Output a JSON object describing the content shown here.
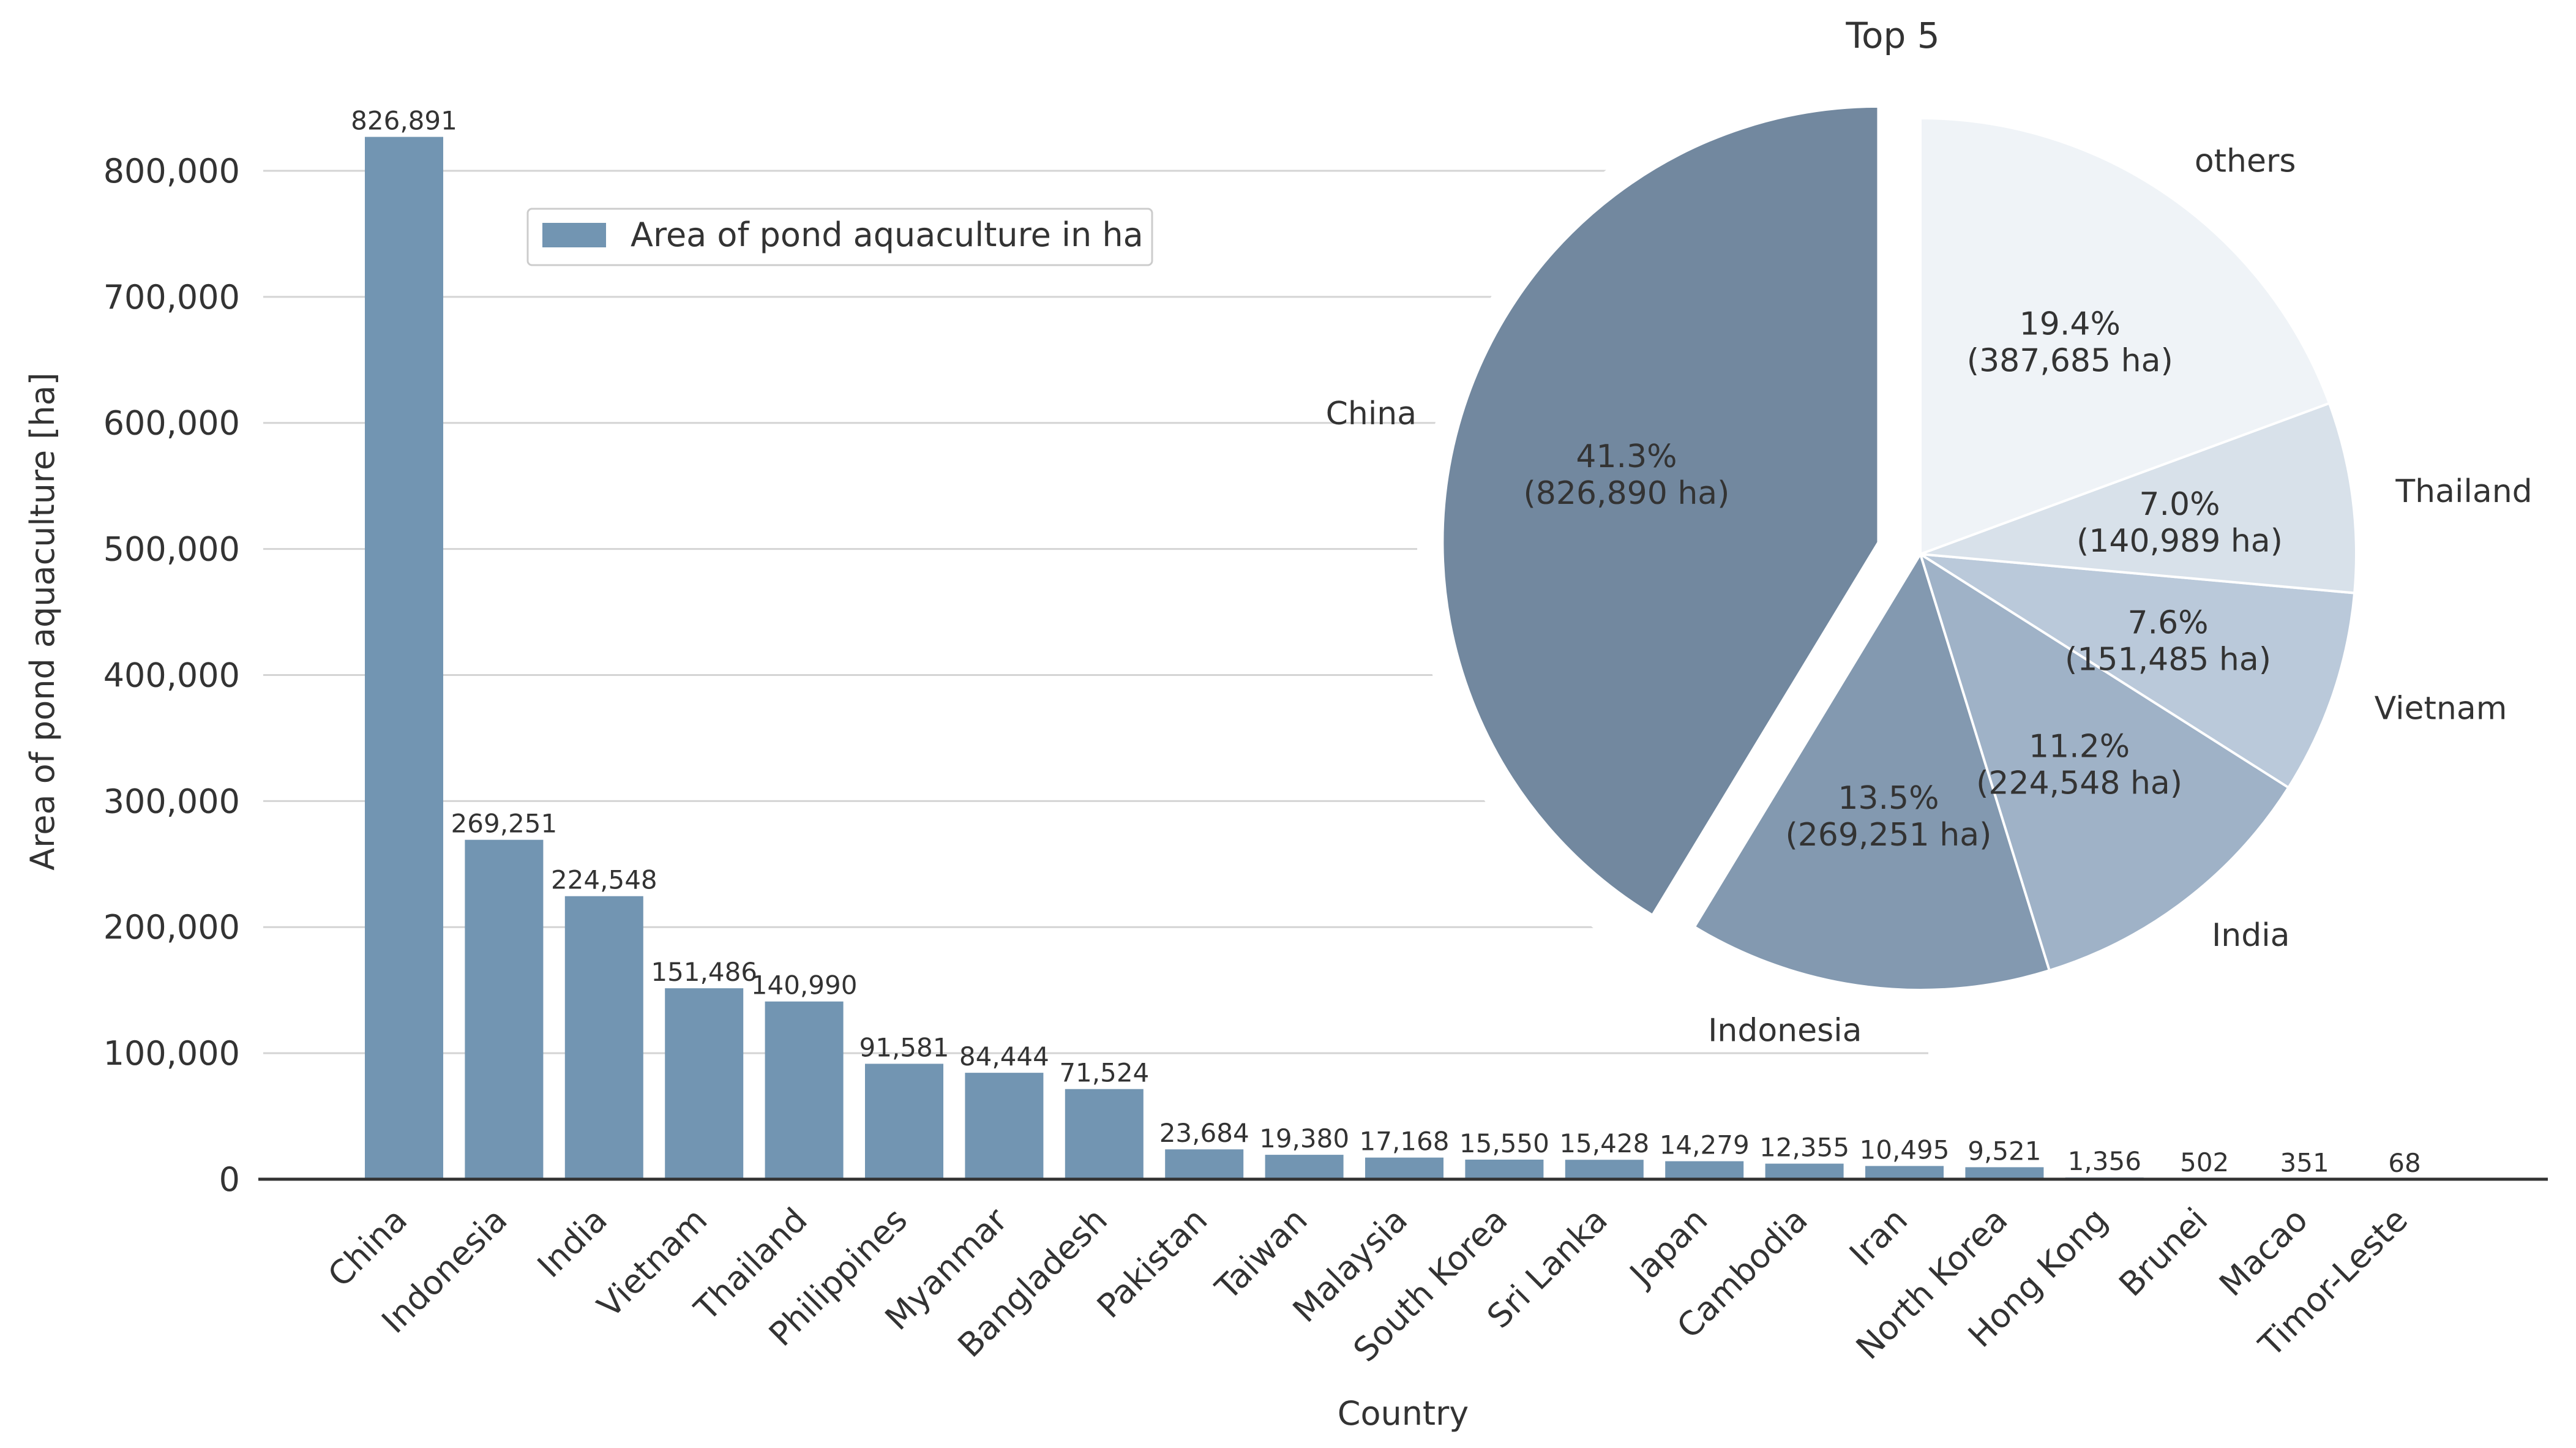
{
  "chart_data": [
    {
      "type": "bar",
      "title": "",
      "xlabel": "Country",
      "ylabel": "Area of pond aquaculture [ha]",
      "ylim": [
        0,
        850000
      ],
      "yticks": [
        0,
        100000,
        200000,
        300000,
        400000,
        500000,
        600000,
        700000,
        800000
      ],
      "ytick_labels": [
        "0",
        "100,000",
        "200,000",
        "300,000",
        "400,000",
        "500,000",
        "600,000",
        "700,000",
        "800,000"
      ],
      "grid": "horizontal",
      "legend": {
        "placement": "top-center",
        "entries": [
          "Area of pond aquaculture in ha"
        ]
      },
      "categories": [
        "China",
        "Indonesia",
        "India",
        "Vietnam",
        "Thailand",
        "Philippines",
        "Myanmar",
        "Bangladesh",
        "Pakistan",
        "Taiwan",
        "Malaysia",
        "South Korea",
        "Sri Lanka",
        "Japan",
        "Cambodia",
        "Iran",
        "North Korea",
        "Hong Kong",
        "Brunei",
        "Macao",
        "Timor-Leste"
      ],
      "values": [
        826891,
        269251,
        224548,
        151486,
        140990,
        91581,
        84444,
        71524,
        23684,
        19380,
        17168,
        15550,
        15428,
        14279,
        12355,
        10495,
        9521,
        1356,
        502,
        351,
        68
      ],
      "value_labels": [
        "826,891",
        "269,251",
        "224,548",
        "151,486",
        "140,990",
        "91,581",
        "84,444",
        "71,524",
        "23,684",
        "19,380",
        "17,168",
        "15,550",
        "15,428",
        "14,279",
        "12,355",
        "10,495",
        "9,521",
        "1,356",
        "502",
        "351",
        "68"
      ],
      "color": "#7295b2"
    },
    {
      "type": "pie",
      "title": "Top 5",
      "labels": [
        "China",
        "Indonesia",
        "India",
        "Vietnam",
        "Thailand",
        "others"
      ],
      "values": [
        826890,
        269251,
        224548,
        151485,
        140989,
        387685
      ],
      "percent_labels": [
        "41.3%",
        "13.5%",
        "11.2%",
        "7.6%",
        "7.0%",
        "19.4%"
      ],
      "value_labels": [
        "(826,890 ha)",
        "(269,251 ha)",
        "(224,548 ha)",
        "(151,485 ha)",
        "(140,989 ha)",
        "(387,685 ha)"
      ],
      "explode": [
        0.1,
        0,
        0,
        0,
        0,
        0
      ],
      "colors": [
        "#72889f",
        "#8399b0",
        "#9fb2c7",
        "#bac9da",
        "#d8e1ea",
        "#eff3f7"
      ]
    }
  ]
}
